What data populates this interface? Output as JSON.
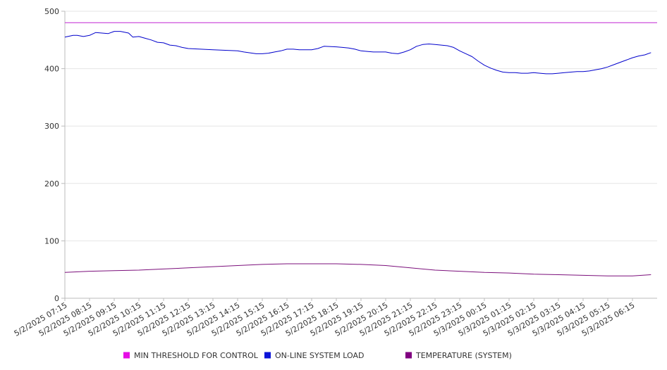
{
  "chart_data": {
    "type": "line",
    "title": "",
    "xlabel": "",
    "ylabel": "",
    "ylim": [
      0,
      500
    ],
    "y_ticks": [
      "0",
      "100",
      "200",
      "300",
      "400",
      "500"
    ],
    "x_tick_labels": [
      "5/2/2025 07:15",
      "5/2/2025 08:15",
      "5/2/2025 09:15",
      "5/2/2025 10:15",
      "5/2/2025 11:15",
      "5/2/2025 12:15",
      "5/2/2025 13:15",
      "5/2/2025 14:15",
      "5/2/2025 15:15",
      "5/2/2025 16:15",
      "5/2/2025 17:15",
      "5/2/2025 18:15",
      "5/2/2025 19:15",
      "5/2/2025 20:15",
      "5/2/2025 21:15",
      "5/2/2025 22:15",
      "5/2/2025 23:15",
      "5/3/2025 00:15",
      "5/3/2025 01:15",
      "5/3/2025 02:15",
      "5/3/2025 03:15",
      "5/3/2025 04:15",
      "5/3/2025 05:15",
      "5/3/2025 06:15"
    ],
    "x_range": [
      "5/2/2025 07:15",
      "5/3/2025 07:15"
    ],
    "grid": {
      "horizontal": true,
      "vertical": false
    },
    "legend": "bottom",
    "series": [
      {
        "name": "MIN THRESHOLD FOR CONTROL",
        "color": "#c026d3",
        "points": [
          [
            "5/2/2025 07:15",
            480
          ],
          [
            "5/3/2025 07:15",
            480
          ]
        ]
      },
      {
        "name": "ON-LINE SYSTEM LOAD",
        "color": "#0000cc",
        "points": [
          [
            "5/2/2025 07:15",
            455
          ],
          [
            "5/2/2025 07:35",
            458
          ],
          [
            "5/2/2025 07:45",
            458
          ],
          [
            "5/2/2025 08:00",
            456
          ],
          [
            "5/2/2025 08:15",
            458
          ],
          [
            "5/2/2025 08:30",
            463
          ],
          [
            "5/2/2025 08:45",
            462
          ],
          [
            "5/2/2025 09:00",
            461
          ],
          [
            "5/2/2025 09:15",
            465
          ],
          [
            "5/2/2025 09:30",
            465
          ],
          [
            "5/2/2025 09:50",
            462
          ],
          [
            "5/2/2025 10:00",
            455
          ],
          [
            "5/2/2025 10:15",
            456
          ],
          [
            "5/2/2025 10:30",
            453
          ],
          [
            "5/2/2025 10:45",
            450
          ],
          [
            "5/2/2025 11:00",
            446
          ],
          [
            "5/2/2025 11:15",
            445
          ],
          [
            "5/2/2025 11:30",
            441
          ],
          [
            "5/2/2025 11:45",
            440
          ],
          [
            "5/2/2025 12:00",
            437
          ],
          [
            "5/2/2025 12:15",
            435
          ],
          [
            "5/2/2025 12:45",
            434
          ],
          [
            "5/2/2025 13:15",
            433
          ],
          [
            "5/2/2025 13:45",
            432
          ],
          [
            "5/2/2025 14:15",
            431
          ],
          [
            "5/2/2025 14:30",
            429
          ],
          [
            "5/2/2025 15:00",
            426
          ],
          [
            "5/2/2025 15:15",
            426
          ],
          [
            "5/2/2025 15:30",
            427
          ],
          [
            "5/2/2025 15:45",
            429
          ],
          [
            "5/2/2025 16:00",
            431
          ],
          [
            "5/2/2025 16:15",
            434
          ],
          [
            "5/2/2025 16:30",
            434
          ],
          [
            "5/2/2025 16:45",
            433
          ],
          [
            "5/2/2025 17:15",
            433
          ],
          [
            "5/2/2025 17:30",
            435
          ],
          [
            "5/2/2025 17:45",
            439
          ],
          [
            "5/2/2025 18:15",
            438
          ],
          [
            "5/2/2025 18:30",
            437
          ],
          [
            "5/2/2025 18:45",
            436
          ],
          [
            "5/2/2025 19:00",
            434
          ],
          [
            "5/2/2025 19:15",
            431
          ],
          [
            "5/2/2025 19:30",
            430
          ],
          [
            "5/2/2025 19:45",
            429
          ],
          [
            "5/2/2025 20:15",
            429
          ],
          [
            "5/2/2025 20:30",
            427
          ],
          [
            "5/2/2025 20:45",
            426
          ],
          [
            "5/2/2025 21:00",
            429
          ],
          [
            "5/2/2025 21:15",
            433
          ],
          [
            "5/2/2025 21:30",
            439
          ],
          [
            "5/2/2025 21:45",
            442
          ],
          [
            "5/2/2025 22:00",
            443
          ],
          [
            "5/2/2025 22:15",
            442
          ],
          [
            "5/2/2025 22:30",
            441
          ],
          [
            "5/2/2025 22:45",
            440
          ],
          [
            "5/2/2025 23:00",
            437
          ],
          [
            "5/2/2025 23:15",
            431
          ],
          [
            "5/2/2025 23:30",
            426
          ],
          [
            "5/2/2025 23:45",
            421
          ],
          [
            "5/3/2025 00:00",
            413
          ],
          [
            "5/3/2025 00:15",
            406
          ],
          [
            "5/3/2025 00:30",
            401
          ],
          [
            "5/3/2025 00:45",
            397
          ],
          [
            "5/3/2025 01:00",
            394
          ],
          [
            "5/3/2025 01:15",
            393
          ],
          [
            "5/3/2025 01:30",
            393
          ],
          [
            "5/3/2025 01:45",
            392
          ],
          [
            "5/3/2025 02:00",
            392
          ],
          [
            "5/3/2025 02:15",
            393
          ],
          [
            "5/3/2025 02:30",
            392
          ],
          [
            "5/3/2025 02:45",
            391
          ],
          [
            "5/3/2025 03:00",
            391
          ],
          [
            "5/3/2025 03:15",
            392
          ],
          [
            "5/3/2025 03:30",
            393
          ],
          [
            "5/3/2025 03:45",
            394
          ],
          [
            "5/3/2025 04:00",
            395
          ],
          [
            "5/3/2025 04:15",
            395
          ],
          [
            "5/3/2025 04:30",
            396
          ],
          [
            "5/3/2025 04:45",
            398
          ],
          [
            "5/3/2025 05:00",
            400
          ],
          [
            "5/3/2025 05:15",
            403
          ],
          [
            "5/3/2025 05:30",
            407
          ],
          [
            "5/3/2025 05:45",
            411
          ],
          [
            "5/3/2025 06:00",
            415
          ],
          [
            "5/3/2025 06:15",
            419
          ],
          [
            "5/3/2025 06:30",
            422
          ],
          [
            "5/3/2025 06:45",
            424
          ],
          [
            "5/3/2025 07:00",
            428
          ]
        ]
      },
      {
        "name": "TEMPERATURE (SYSTEM)",
        "color": "#7b0f7b",
        "points": [
          [
            "5/2/2025 07:15",
            45
          ],
          [
            "5/2/2025 08:15",
            47
          ],
          [
            "5/2/2025 09:15",
            48
          ],
          [
            "5/2/2025 10:15",
            49
          ],
          [
            "5/2/2025 11:15",
            51
          ],
          [
            "5/2/2025 12:15",
            53
          ],
          [
            "5/2/2025 13:15",
            55
          ],
          [
            "5/2/2025 14:15",
            57
          ],
          [
            "5/2/2025 15:15",
            59
          ],
          [
            "5/2/2025 16:15",
            60
          ],
          [
            "5/2/2025 17:15",
            60
          ],
          [
            "5/2/2025 18:15",
            60
          ],
          [
            "5/2/2025 19:15",
            59
          ],
          [
            "5/2/2025 20:15",
            57
          ],
          [
            "5/2/2025 21:15",
            53
          ],
          [
            "5/2/2025 22:15",
            49
          ],
          [
            "5/2/2025 23:15",
            47
          ],
          [
            "5/3/2025 00:15",
            45
          ],
          [
            "5/3/2025 01:15",
            44
          ],
          [
            "5/3/2025 02:15",
            42
          ],
          [
            "5/3/2025 03:15",
            41
          ],
          [
            "5/3/2025 04:15",
            40
          ],
          [
            "5/3/2025 05:15",
            39
          ],
          [
            "5/3/2025 06:15",
            39
          ],
          [
            "5/3/2025 07:00",
            41
          ]
        ]
      }
    ],
    "legend_entries": [
      {
        "label": "MIN THRESHOLD FOR CONTROL",
        "color": "#e60ee6"
      },
      {
        "label": "ON-LINE SYSTEM LOAD",
        "color": "#0a14d8"
      },
      {
        "label": "TEMPERATURE (SYSTEM)",
        "color": "#800080"
      }
    ]
  }
}
